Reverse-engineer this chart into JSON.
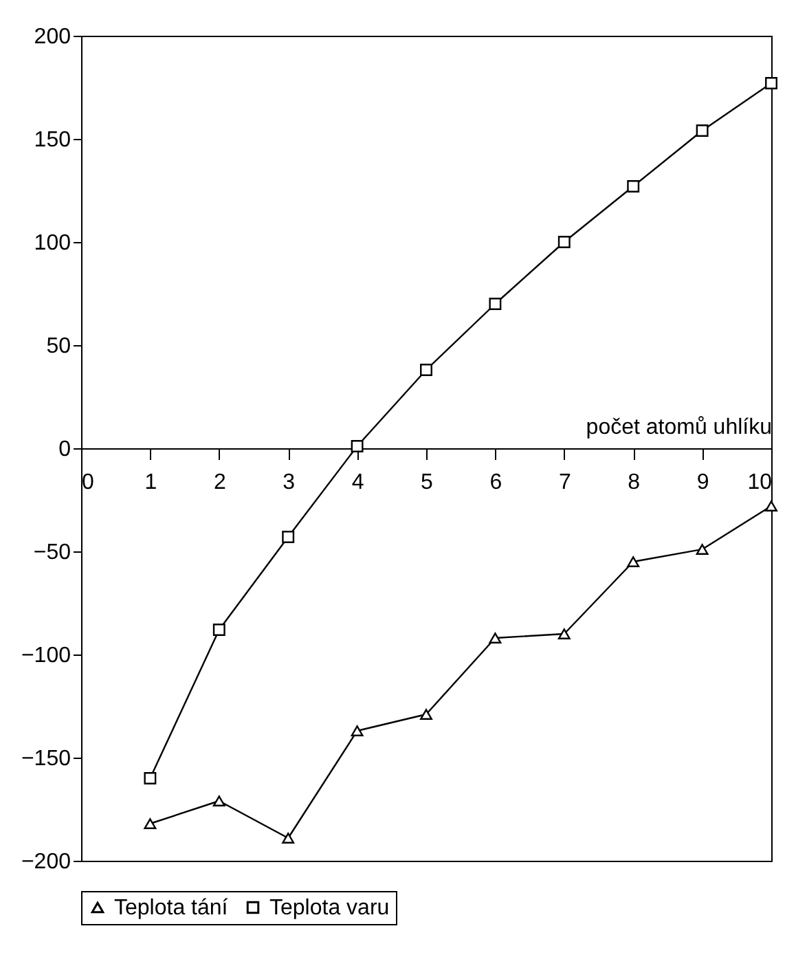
{
  "chart_data": {
    "type": "line",
    "xlabel": "počet atomů uhlíku",
    "x": [
      1,
      2,
      3,
      4,
      5,
      6,
      7,
      8,
      9,
      10
    ],
    "series": [
      {
        "name": "Teplota tání",
        "color": "#000000",
        "marker": "triangle",
        "values": [
          -182,
          -171,
          -189,
          -137,
          -129,
          -92,
          -90,
          -55,
          -49,
          -28
        ]
      },
      {
        "name": "Teplota varu",
        "color": "#000000",
        "marker": "square",
        "values": [
          -160,
          -88,
          -43,
          1,
          38,
          70,
          100,
          127,
          154,
          177
        ]
      }
    ],
    "xlim": [
      0,
      10
    ],
    "xticks": [
      0,
      1,
      2,
      3,
      4,
      5,
      6,
      7,
      8,
      9,
      10
    ],
    "ylim": [
      -200,
      200
    ],
    "yticks": [
      -200,
      -150,
      -100,
      -50,
      0,
      50,
      100,
      150,
      200
    ],
    "grid": false,
    "legend": "bottom"
  }
}
